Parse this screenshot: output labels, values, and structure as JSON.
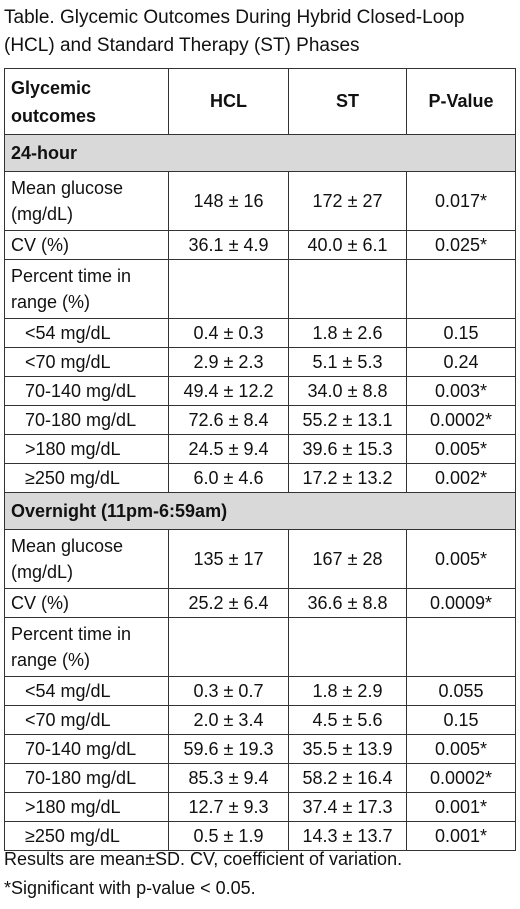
{
  "title": "Table. Glycemic Outcomes During Hybrid Closed-Loop (HCL) and Standard Therapy (ST) Phases",
  "headers": [
    "Glycemic outcomes",
    "HCL",
    "ST",
    "P-Value"
  ],
  "sections": [
    {
      "name": "24-hour",
      "rows": [
        {
          "label": "Mean glucose (mg/dL)",
          "hcl": "148 ± 16",
          "st": "172 ± 27",
          "p": "0.017*"
        },
        {
          "label": "CV (%)",
          "hcl": "36.1 ± 4.9",
          "st": "40.0 ± 6.1",
          "p": "0.025*"
        },
        {
          "label": "Percent time in range (%)",
          "hcl": "",
          "st": "",
          "p": ""
        },
        {
          "label": "<54 mg/dL",
          "hcl": "0.4 ± 0.3",
          "st": "1.8 ± 2.6",
          "p": "0.15"
        },
        {
          "label": "<70 mg/dL",
          "hcl": "2.9 ± 2.3",
          "st": "5.1 ± 5.3",
          "p": "0.24"
        },
        {
          "label": "70-140 mg/dL",
          "hcl": "49.4 ± 12.2",
          "st": "34.0 ± 8.8",
          "p": "0.003*"
        },
        {
          "label": "70-180 mg/dL",
          "hcl": "72.6 ± 8.4",
          "st": "55.2 ± 13.1",
          "p": "0.0002*"
        },
        {
          "label": ">180 mg/dL",
          "hcl": "24.5 ± 9.4",
          "st": "39.6 ± 15.3",
          "p": "0.005*"
        },
        {
          "label": "≥250 mg/dL",
          "hcl": "6.0 ± 4.6",
          "st": "17.2 ± 13.2",
          "p": "0.002*"
        }
      ]
    },
    {
      "name": "Overnight (11pm-6:59am)",
      "rows": [
        {
          "label": "Mean glucose (mg/dL)",
          "hcl": "135 ± 17",
          "st": "167 ± 28",
          "p": "0.005*"
        },
        {
          "label": "CV (%)",
          "hcl": "25.2 ± 6.4",
          "st": "36.6 ± 8.8",
          "p": "0.0009*"
        },
        {
          "label": "Percent time in range (%)",
          "hcl": "",
          "st": "",
          "p": ""
        },
        {
          "label": "<54 mg/dL",
          "hcl": "0.3 ± 0.7",
          "st": "1.8 ± 2.9",
          "p": "0.055"
        },
        {
          "label": "<70 mg/dL",
          "hcl": "2.0 ± 3.4",
          "st": "4.5 ± 5.6",
          "p": "0.15"
        },
        {
          "label": "70-140 mg/dL",
          "hcl": "59.6 ± 19.3",
          "st": "35.5 ± 13.9",
          "p": "0.005*"
        },
        {
          "label": "70-180 mg/dL",
          "hcl": "85.3 ± 9.4",
          "st": "58.2 ± 16.4",
          "p": "0.0002*"
        },
        {
          "label": ">180 mg/dL",
          "hcl": "12.7 ± 9.3",
          "st": "37.4 ± 17.3",
          "p": "0.001*"
        },
        {
          "label": "≥250 mg/dL",
          "hcl": "0.5 ± 1.9",
          "st": "14.3 ± 13.7",
          "p": "0.001*"
        }
      ]
    }
  ],
  "footnotes": [
    "Results are mean±SD. CV, coefficient of variation.",
    "*Significant with p-value < 0.05."
  ]
}
